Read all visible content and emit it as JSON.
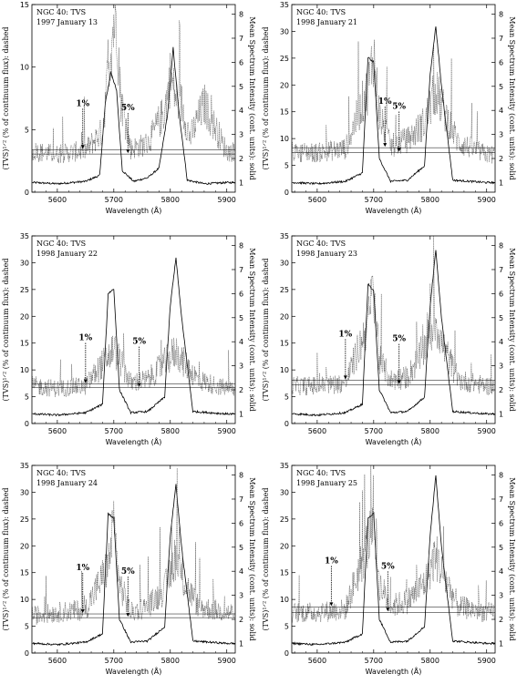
{
  "figure": {
    "panels": [
      {
        "title": "NGC 40: TVS",
        "date": "1997 January 13",
        "yleft_max": 15,
        "yleft_ticks": [
          0,
          5,
          10,
          15
        ],
        "level_1": 3.4,
        "level_5": 3.05,
        "ann1_x": 5645,
        "ann5_x": 5725,
        "tvs_scale": 1.0
      },
      {
        "title": "NGC 40: TVS",
        "date": "1998 January 21",
        "yleft_max": 35,
        "yleft_ticks": [
          0,
          5,
          10,
          15,
          20,
          25,
          30,
          35
        ],
        "level_1": 8.3,
        "level_5": 7.4,
        "ann1_x": 5720,
        "ann5_x": 5745,
        "tvs_scale": 0.6
      },
      {
        "title": "NGC 40: TVS",
        "date": "1998 January 22",
        "yleft_max": 35,
        "yleft_ticks": [
          0,
          5,
          10,
          15,
          20,
          25,
          30,
          35
        ],
        "level_1": 7.4,
        "level_5": 6.7,
        "ann1_x": 5650,
        "ann5_x": 5745,
        "tvs_scale": 0.65
      },
      {
        "title": "NGC 40: TVS",
        "date": "1998 January 23",
        "yleft_max": 35,
        "yleft_ticks": [
          0,
          5,
          10,
          15,
          20,
          25,
          30,
          35
        ],
        "level_1": 8.1,
        "level_5": 7.2,
        "ann1_x": 5650,
        "ann5_x": 5745,
        "tvs_scale": 0.7
      },
      {
        "title": "NGC 40: TVS",
        "date": "1998 January 24",
        "yleft_max": 35,
        "yleft_ticks": [
          0,
          5,
          10,
          15,
          20,
          25,
          30,
          35
        ],
        "level_1": 7.3,
        "level_5": 6.6,
        "ann1_x": 5645,
        "ann5_x": 5725,
        "tvs_scale": 0.7
      },
      {
        "title": "NGC 40: TVS",
        "date": "1998 January 25",
        "yleft_max": 35,
        "yleft_ticks": [
          0,
          5,
          10,
          15,
          20,
          25,
          30,
          35
        ],
        "level_1": 8.6,
        "level_5": 7.6,
        "ann1_x": 5625,
        "ann5_x": 5725,
        "tvs_scale": 0.75
      }
    ],
    "ylabel_left": "(TVS)¹ᐟ² (% of continuum flux): dashed",
    "ylabel_right": "Mean Spectrum Intensity (cont. units): solid",
    "xlabel": "Wavelength (Å)",
    "ann_1": "1%",
    "ann_5": "5%"
  },
  "chart_data": [
    {
      "type": "line",
      "title": "NGC 40: TVS",
      "subtitle": "1997 January 13",
      "xlabel": "Wavelength (Å)",
      "ylabel": "(TVS)¹ᐟ² (% of continuum flux): dashed",
      "ylabel_right": "Mean Spectrum Intensity (cont. units): solid",
      "xlim": [
        5555,
        5915
      ],
      "xticks": [
        5600,
        5700,
        5800,
        5900
      ],
      "ylim": [
        0,
        15
      ],
      "ylim_right": [
        0.6,
        8.4
      ],
      "series": [
        {
          "x": [
            5560,
            5600,
            5650,
            5675,
            5685,
            5695,
            5705,
            5715,
            5735,
            5760,
            5780,
            5795,
            5805,
            5815,
            5830,
            5860,
            5900,
            5915
          ],
          "y": [
            1.0,
            0.95,
            1.05,
            1.3,
            4.3,
            5.6,
            4.8,
            1.5,
            1.05,
            1.2,
            1.6,
            3.8,
            6.6,
            4.0,
            1.1,
            0.95,
            1.0,
            1.0
          ]
        },
        {
          "x": [
            5560,
            5600,
            5650,
            5680,
            5690,
            5700,
            5705,
            5712,
            5730,
            5760,
            5790,
            5800,
            5810,
            5820,
            5835,
            5860,
            5900
          ],
          "y": [
            3.0,
            2.8,
            3.1,
            4.5,
            9.0,
            12.5,
            13.1,
            7.0,
            3.2,
            3.6,
            6.0,
            8.5,
            7.0,
            6.5,
            4.0,
            6.5,
            3.0
          ]
        }
      ]
    },
    {
      "type": "line",
      "title": "NGC 40: TVS",
      "subtitle": "1998 January 21",
      "xlabel": "Wavelength (Å)",
      "ylim": [
        0,
        35
      ],
      "series": [
        {
          "x": [
            5560,
            5600,
            5650,
            5680,
            5690,
            5700,
            5710,
            5730,
            5760,
            5790,
            5800,
            5810,
            5820,
            5840,
            5900
          ],
          "y": [
            1.0,
            0.95,
            1.05,
            1.4,
            6.2,
            6.0,
            2.0,
            1.05,
            1.1,
            1.7,
            5.5,
            7.5,
            5.0,
            1.1,
            1.0
          ]
        },
        {
          "x": [
            5560,
            5600,
            5650,
            5690,
            5700,
            5710,
            5730,
            5760,
            5790,
            5810,
            5820,
            5850,
            5900
          ],
          "y": [
            7.0,
            6.8,
            7.5,
            18.0,
            24.0,
            13.0,
            8.0,
            9.0,
            12.0,
            17.5,
            15.0,
            8.5,
            6.5
          ]
        }
      ]
    },
    {
      "type": "line",
      "title": "NGC 40: TVS",
      "subtitle": "1998 January 22",
      "xlabel": "Wavelength (Å)",
      "ylim": [
        0,
        35
      ],
      "series": [
        {
          "x": [
            5560,
            5600,
            5650,
            5680,
            5690,
            5700,
            5710,
            5730,
            5760,
            5790,
            5800,
            5810,
            5820,
            5840,
            5900
          ],
          "y": [
            1.0,
            0.95,
            1.05,
            1.4,
            6.0,
            6.2,
            2.0,
            1.05,
            1.1,
            1.7,
            5.5,
            7.5,
            5.0,
            1.1,
            1.0
          ]
        },
        {
          "x": [
            5560,
            5600,
            5650,
            5690,
            5700,
            5710,
            5730,
            5760,
            5790,
            5810,
            5820,
            5850,
            5900
          ],
          "y": [
            6.5,
            6.0,
            6.5,
            11.5,
            13.0,
            11.0,
            7.0,
            7.5,
            10.5,
            12.5,
            11.0,
            7.5,
            6.0
          ]
        }
      ]
    },
    {
      "type": "line",
      "title": "NGC 40: TVS",
      "subtitle": "1998 January 23",
      "xlabel": "Wavelength (Å)",
      "ylim": [
        0,
        35
      ],
      "series": [
        {
          "x": [
            5560,
            5600,
            5650,
            5680,
            5690,
            5700,
            5710,
            5730,
            5760,
            5790,
            5800,
            5810,
            5820,
            5840,
            5900
          ],
          "y": [
            1.0,
            0.95,
            1.05,
            1.4,
            6.4,
            6.1,
            2.0,
            1.05,
            1.1,
            1.7,
            5.5,
            7.8,
            5.0,
            1.1,
            1.0
          ]
        },
        {
          "x": [
            5560,
            5600,
            5650,
            5690,
            5700,
            5710,
            5730,
            5760,
            5790,
            5810,
            5820,
            5850,
            5900
          ],
          "y": [
            6.5,
            6.5,
            7.0,
            17.0,
            24.0,
            11.0,
            7.5,
            8.0,
            13.0,
            18.0,
            14.0,
            7.5,
            6.5
          ]
        }
      ]
    },
    {
      "type": "line",
      "title": "NGC 40: TVS",
      "subtitle": "1998 January 24",
      "xlabel": "Wavelength (Å)",
      "ylim": [
        0,
        35
      ],
      "series": [
        {
          "x": [
            5560,
            5600,
            5650,
            5680,
            5690,
            5700,
            5710,
            5730,
            5760,
            5790,
            5800,
            5810,
            5820,
            5840,
            5900
          ],
          "y": [
            1.0,
            0.95,
            1.05,
            1.4,
            6.4,
            6.2,
            2.0,
            1.05,
            1.1,
            1.7,
            5.5,
            7.6,
            5.0,
            1.1,
            1.0
          ]
        },
        {
          "x": [
            5560,
            5600,
            5650,
            5690,
            5700,
            5710,
            5730,
            5760,
            5790,
            5810,
            5820,
            5850,
            5900
          ],
          "y": [
            6.5,
            7.0,
            7.5,
            15.0,
            22.0,
            12.0,
            7.0,
            8.0,
            11.0,
            17.0,
            13.0,
            8.0,
            7.0
          ]
        }
      ]
    },
    {
      "type": "line",
      "title": "NGC 40: TVS",
      "subtitle": "1998 January 25",
      "xlabel": "Wavelength (Å)",
      "ylim": [
        0,
        35
      ],
      "series": [
        {
          "x": [
            5560,
            5600,
            5650,
            5680,
            5690,
            5700,
            5710,
            5730,
            5760,
            5790,
            5800,
            5810,
            5820,
            5840,
            5900
          ],
          "y": [
            1.0,
            0.95,
            1.05,
            1.4,
            6.2,
            6.4,
            2.0,
            1.05,
            1.1,
            1.7,
            5.5,
            8.0,
            5.0,
            1.1,
            1.0
          ]
        },
        {
          "x": [
            5560,
            5600,
            5650,
            5690,
            5700,
            5710,
            5730,
            5760,
            5790,
            5810,
            5820,
            5850,
            5900
          ],
          "y": [
            7.0,
            7.0,
            7.5,
            19.0,
            25.0,
            12.0,
            8.0,
            9.0,
            12.0,
            17.0,
            14.0,
            8.0,
            7.0
          ]
        }
      ]
    }
  ]
}
